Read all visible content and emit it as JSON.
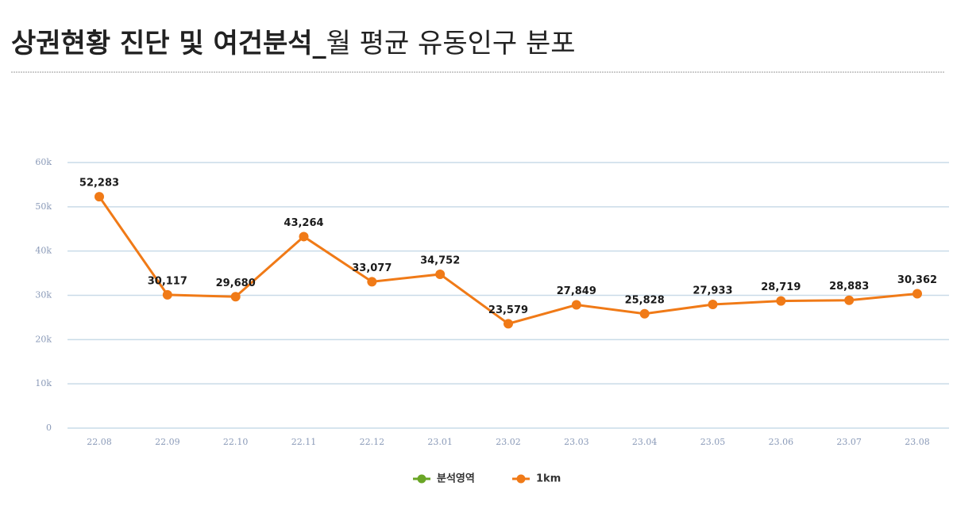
{
  "chart_data": {
    "type": "line",
    "title": [
      "상권현황 진단 및 여건분석_",
      "월 평균 유동인구 분포"
    ],
    "categories": [
      "22.08",
      "22.09",
      "22.10",
      "22.11",
      "22.12",
      "23.01",
      "23.02",
      "23.03",
      "23.04",
      "23.05",
      "23.06",
      "23.07",
      "23.08"
    ],
    "series": [
      {
        "name": "분석영역",
        "color": "#6aa626",
        "values": [
          null,
          null,
          null,
          null,
          null,
          null,
          null,
          null,
          null,
          null,
          null,
          null,
          null
        ]
      },
      {
        "name": "1km",
        "color": "#f07a17",
        "values": [
          52283,
          30117,
          29680,
          43264,
          33077,
          34752,
          23579,
          27849,
          25828,
          27933,
          28719,
          28883,
          30362
        ],
        "value_labels": [
          "52,283",
          "30,117",
          "29,680",
          "43,264",
          "33,077",
          "34,752",
          "23,579",
          "27,849",
          "25,828",
          "27,933",
          "28,719",
          "28,883",
          "30,362"
        ]
      }
    ],
    "ylim": [
      0,
      60000
    ],
    "yticks": [
      0,
      {
        "value": 10000,
        "label": "10k"
      },
      {
        "value": 20000,
        "label": "20k"
      },
      {
        "value": 30000,
        "label": "30k"
      },
      {
        "value": 40000,
        "label": "40k"
      },
      {
        "value": 50000,
        "label": "50k"
      },
      {
        "value": 60000,
        "label": "60k"
      }
    ],
    "grid": true,
    "legend": "bottom"
  }
}
